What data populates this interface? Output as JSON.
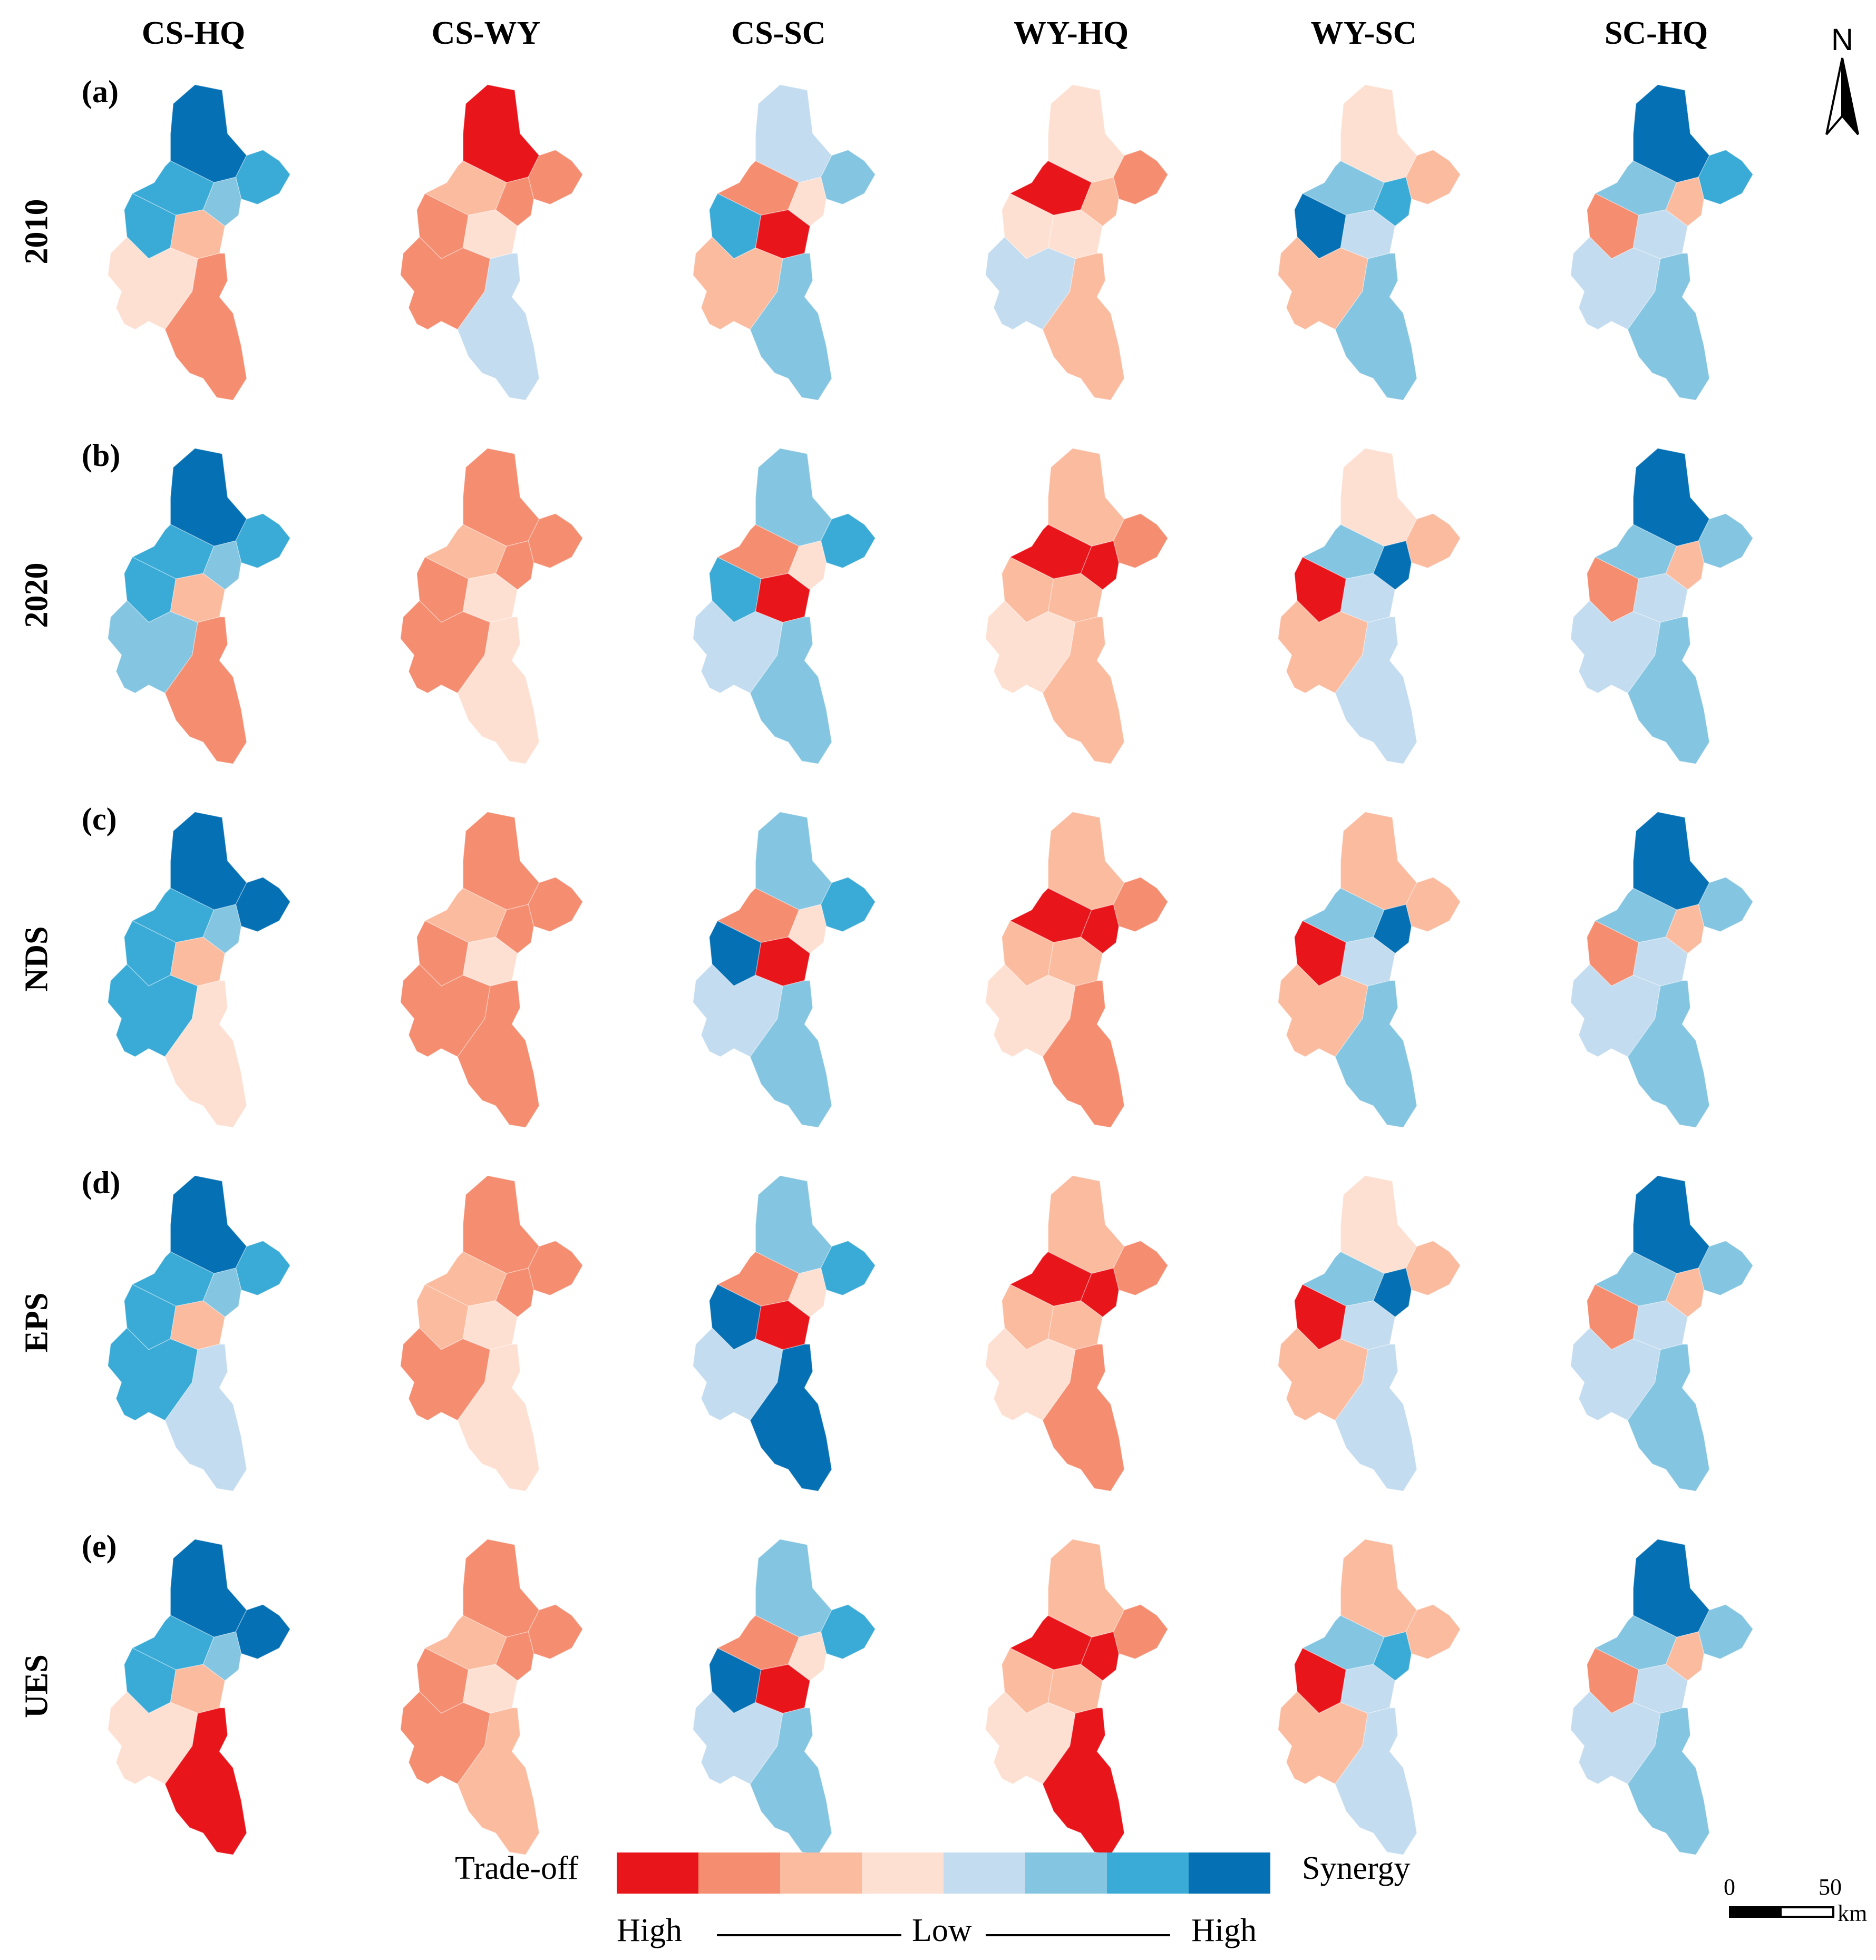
{
  "columns": [
    "CS-HQ",
    "CS-WY",
    "CS-SC",
    "WY-HQ",
    "WY-SC",
    "SC-HQ"
  ],
  "rows": [
    {
      "tag": "(a)",
      "label": "2010"
    },
    {
      "tag": "(b)",
      "label": "2020"
    },
    {
      "tag": "(c)",
      "label": "NDS"
    },
    {
      "tag": "(d)",
      "label": "EPS"
    },
    {
      "tag": "(e)",
      "label": "UES"
    }
  ],
  "north_label": "N",
  "legend": {
    "left_label": "Trade-off",
    "right_label": "Synergy",
    "scale_left": "High",
    "scale_mid": "Low",
    "scale_right": "High",
    "colors": [
      "#e8151b",
      "#f58d70",
      "#fbbb9f",
      "#fde0d2",
      "#c3dcef",
      "#84c5e1",
      "#3aaad6",
      "#0570b4"
    ]
  },
  "scale_bar": {
    "start": "0",
    "end": "50",
    "unit": "km"
  },
  "map_classes": {
    "comment_free": true,
    "cells": [
      [
        [
          7,
          6,
          6,
          5,
          6,
          2,
          3,
          1
        ],
        [
          0,
          1,
          2,
          1,
          1,
          3,
          1,
          4
        ],
        [
          4,
          5,
          1,
          3,
          6,
          0,
          2,
          5
        ],
        [
          3,
          1,
          0,
          2,
          3,
          3,
          4,
          2
        ],
        [
          3,
          2,
          5,
          6,
          7,
          4,
          2,
          5
        ],
        [
          7,
          6,
          5,
          2,
          1,
          4,
          4,
          5
        ]
      ],
      [
        [
          7,
          6,
          6,
          5,
          6,
          2,
          5,
          1
        ],
        [
          1,
          1,
          2,
          1,
          1,
          3,
          1,
          3
        ],
        [
          5,
          6,
          1,
          3,
          6,
          0,
          4,
          5
        ],
        [
          2,
          1,
          0,
          0,
          2,
          2,
          3,
          2
        ],
        [
          3,
          2,
          5,
          7,
          0,
          4,
          2,
          4
        ],
        [
          7,
          5,
          5,
          2,
          1,
          4,
          4,
          5
        ]
      ],
      [
        [
          7,
          7,
          6,
          5,
          6,
          2,
          6,
          3
        ],
        [
          1,
          1,
          2,
          1,
          1,
          3,
          1,
          1
        ],
        [
          5,
          6,
          1,
          3,
          7,
          0,
          4,
          5
        ],
        [
          2,
          1,
          0,
          0,
          2,
          2,
          3,
          1
        ],
        [
          2,
          2,
          5,
          7,
          0,
          4,
          2,
          5
        ],
        [
          7,
          5,
          5,
          2,
          1,
          4,
          4,
          5
        ]
      ],
      [
        [
          7,
          6,
          6,
          5,
          6,
          2,
          6,
          4
        ],
        [
          1,
          1,
          2,
          1,
          2,
          3,
          1,
          3
        ],
        [
          5,
          6,
          1,
          3,
          7,
          0,
          4,
          7
        ],
        [
          2,
          1,
          0,
          0,
          2,
          2,
          3,
          1
        ],
        [
          3,
          2,
          5,
          7,
          0,
          4,
          2,
          4
        ],
        [
          7,
          5,
          5,
          2,
          1,
          4,
          4,
          5
        ]
      ],
      [
        [
          7,
          7,
          6,
          5,
          6,
          2,
          3,
          0
        ],
        [
          1,
          1,
          2,
          1,
          1,
          3,
          1,
          2
        ],
        [
          5,
          6,
          1,
          3,
          7,
          0,
          4,
          5
        ],
        [
          2,
          1,
          0,
          0,
          2,
          2,
          3,
          0
        ],
        [
          2,
          2,
          5,
          6,
          0,
          4,
          2,
          4
        ],
        [
          7,
          5,
          5,
          2,
          1,
          4,
          4,
          5
        ]
      ]
    ]
  }
}
